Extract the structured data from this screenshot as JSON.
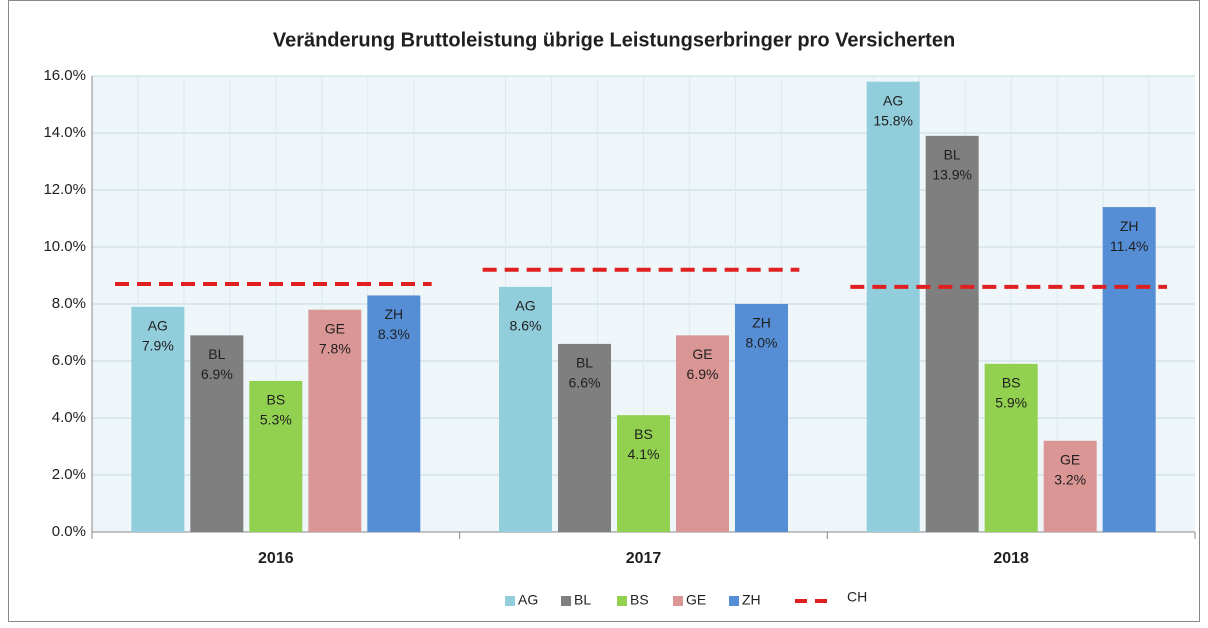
{
  "chart_data": {
    "type": "bar",
    "title": "Veränderung Bruttoleistung übrige Leistungserbringer pro Versicherten",
    "categories": [
      "2016",
      "2017",
      "2018"
    ],
    "series": [
      {
        "name": "AG",
        "color": "#92cddc",
        "values": [
          7.9,
          8.6,
          15.8
        ],
        "value_labels": [
          "7.9%",
          "8.6%",
          "15.8%"
        ]
      },
      {
        "name": "BL",
        "color": "#7f7f7f",
        "values": [
          6.9,
          6.6,
          13.9
        ],
        "value_labels": [
          "6.9%",
          "6.6%",
          "13.9%"
        ]
      },
      {
        "name": "BS",
        "color": "#92d050",
        "values": [
          5.3,
          4.1,
          5.9
        ],
        "value_labels": [
          "5.3%",
          "4.1%",
          "5.9%"
        ]
      },
      {
        "name": "GE",
        "color": "#da9694",
        "values": [
          7.8,
          6.9,
          3.2
        ],
        "value_labels": [
          "7.8%",
          "6.9%",
          "3.2%"
        ]
      },
      {
        "name": "ZH",
        "color": "#558ed5",
        "values": [
          8.3,
          8.0,
          11.4
        ],
        "value_labels": [
          "8.3%",
          "8.0%",
          "11.4%"
        ]
      },
      {
        "name": "CH",
        "color": "#e02020",
        "type": "line",
        "style": "dashed",
        "values": [
          8.7,
          9.2,
          8.6
        ]
      }
    ],
    "ylim": [
      0,
      16
    ],
    "yticks": [
      {
        "value": 0,
        "label": "0.0%"
      },
      {
        "value": 2,
        "label": "2.0%"
      },
      {
        "value": 4,
        "label": "4.0%"
      },
      {
        "value": 6,
        "label": "6.0%"
      },
      {
        "value": 8,
        "label": "8.0%"
      },
      {
        "value": 10,
        "label": "10.0%"
      },
      {
        "value": 12,
        "label": "12.0%"
      },
      {
        "value": 14,
        "label": "14.0%"
      },
      {
        "value": 16,
        "label": "16.0%"
      }
    ],
    "grid": true,
    "legend": "bottom"
  }
}
